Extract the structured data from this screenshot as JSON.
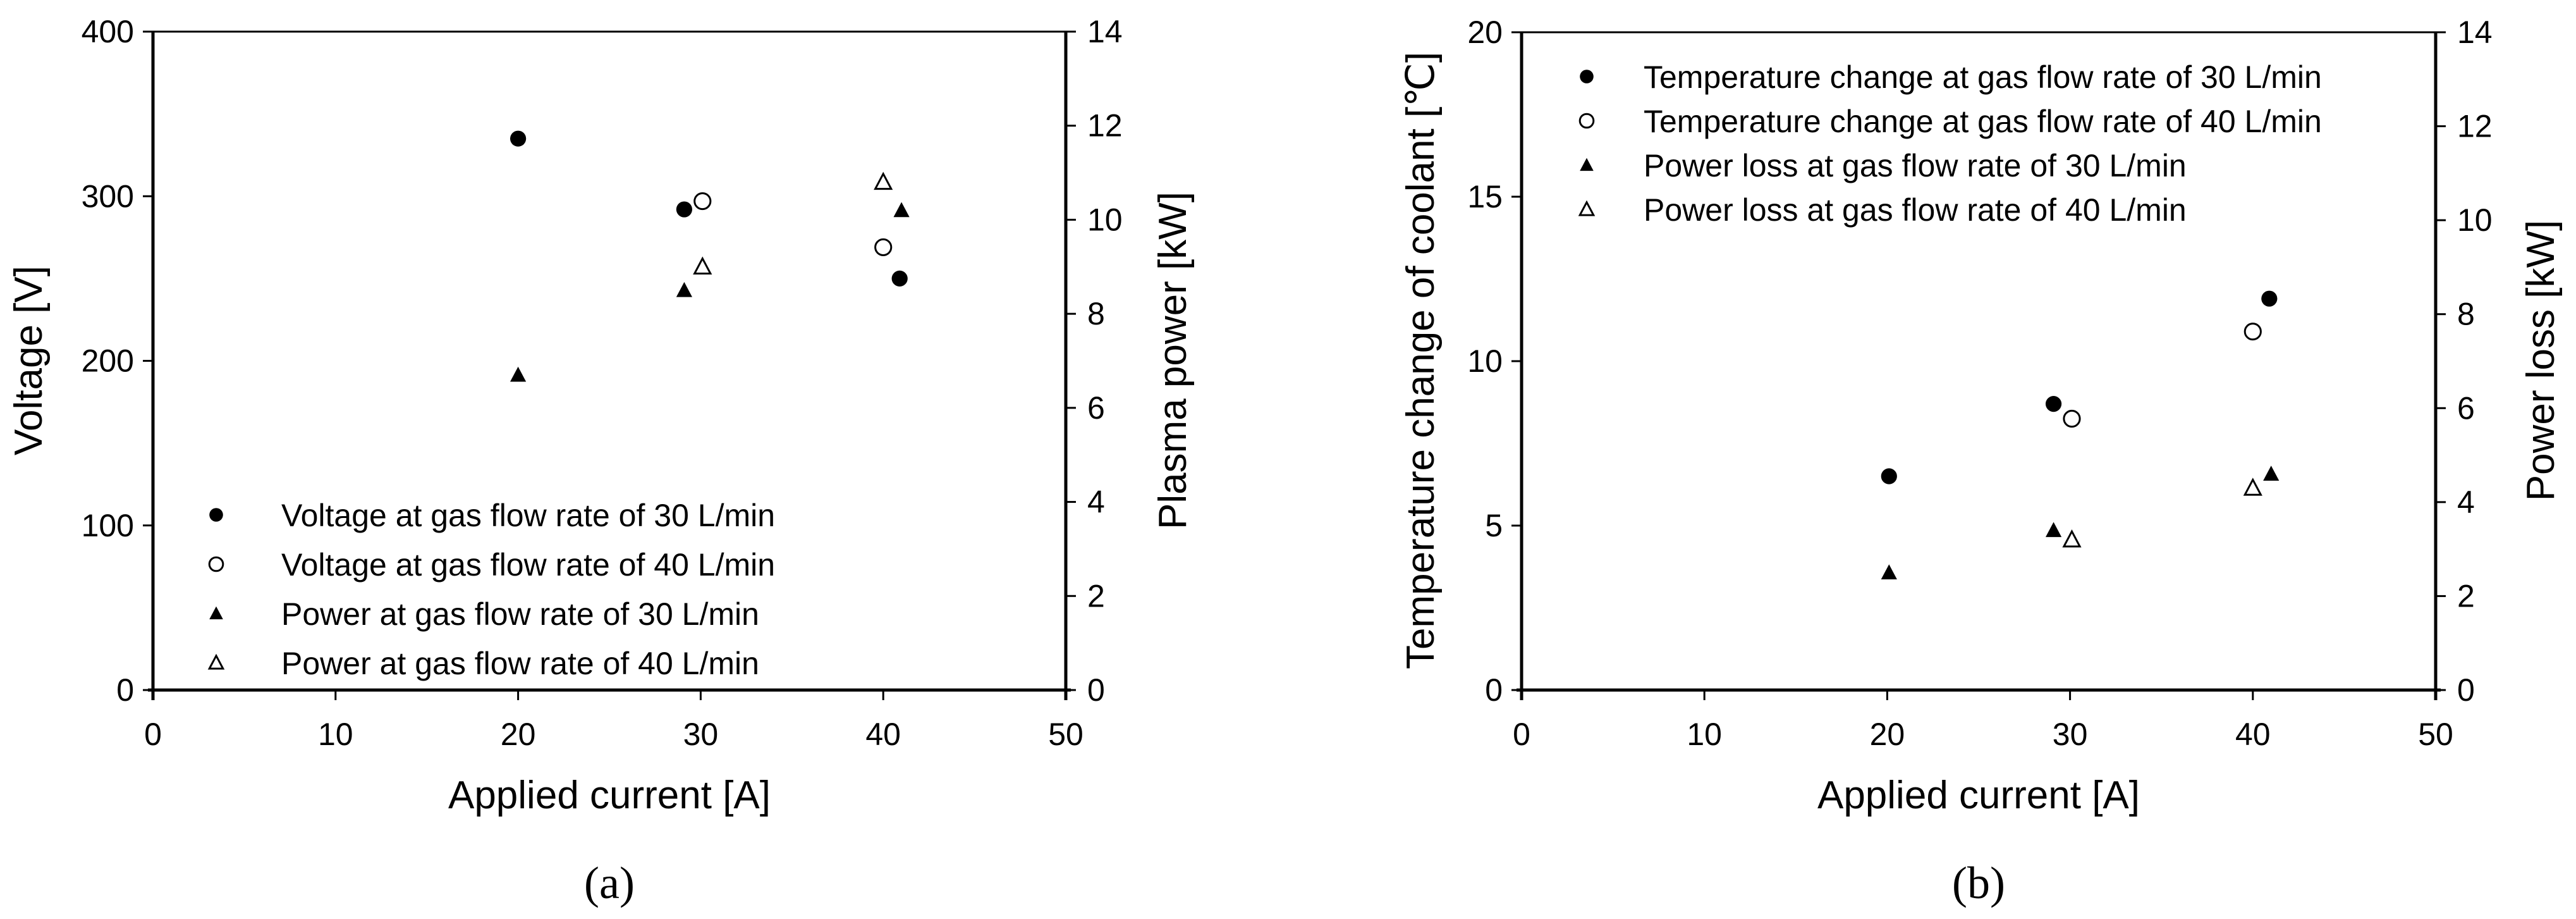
{
  "figure": {
    "panels": [
      "(a)",
      "(b)"
    ]
  },
  "chart_data": [
    {
      "type": "scatter",
      "panel_label": "(a)",
      "title": "",
      "xlabel": "Applied current [A]",
      "ylabel": "Voltage [V]",
      "y2label": "Plasma power [kW]",
      "xlim": [
        0,
        50
      ],
      "ylim": [
        0,
        400
      ],
      "y2lim": [
        0,
        14
      ],
      "xticks": [
        0,
        10,
        20,
        30,
        40,
        50
      ],
      "yticks": [
        0,
        100,
        200,
        300,
        400
      ],
      "y2ticks": [
        0,
        2,
        4,
        6,
        8,
        10,
        12,
        14
      ],
      "grid": false,
      "legend_position": "lower left",
      "series": [
        {
          "name": "Voltage at gas flow rate of 30 L/min",
          "marker": "filled-circle",
          "axis": "left",
          "x": [
            20.0,
            29.1,
            40.9
          ],
          "y": [
            335,
            292,
            250
          ]
        },
        {
          "name": "Voltage at gas flow rate of 40 L/min",
          "marker": "open-circle",
          "axis": "left",
          "x": [
            30.1,
            40.0
          ],
          "y": [
            297,
            269
          ]
        },
        {
          "name": "Power at gas flow rate of 30 L/min",
          "marker": "filled-triangle",
          "axis": "right",
          "x": [
            20.0,
            29.1,
            41.0
          ],
          "y": [
            6.7,
            8.5,
            10.2
          ]
        },
        {
          "name": "Power at gas flow rate of 40 L/min",
          "marker": "open-triangle",
          "axis": "right",
          "x": [
            30.1,
            40.0
          ],
          "y": [
            9.0,
            10.8
          ]
        }
      ]
    },
    {
      "type": "scatter",
      "panel_label": "(b)",
      "title": "",
      "xlabel": "Applied current [A]",
      "ylabel": "Temperature change of coolant [℃]",
      "y2label": "Power loss [kW]",
      "xlim": [
        0,
        50
      ],
      "ylim": [
        0,
        20
      ],
      "y2lim": [
        0,
        14
      ],
      "xticks": [
        0,
        10,
        20,
        30,
        40,
        50
      ],
      "yticks": [
        0,
        5,
        10,
        15,
        20
      ],
      "y2ticks": [
        0,
        2,
        4,
        6,
        8,
        10,
        12,
        14
      ],
      "grid": false,
      "legend_position": "upper left",
      "series": [
        {
          "name": "Temperature change at gas flow rate of 30 L/min",
          "marker": "filled-circle",
          "axis": "left",
          "x": [
            20.1,
            29.1,
            40.9
          ],
          "y": [
            6.5,
            8.7,
            11.9
          ]
        },
        {
          "name": "Temperature change at gas flow rate of 40 L/min",
          "marker": "open-circle",
          "axis": "left",
          "x": [
            30.1,
            40.0
          ],
          "y": [
            8.25,
            10.9
          ]
        },
        {
          "name": "Power loss at gas flow rate of 30 L/min",
          "marker": "filled-triangle",
          "axis": "right",
          "x": [
            20.1,
            29.1,
            41.0
          ],
          "y": [
            2.5,
            3.4,
            4.6
          ]
        },
        {
          "name": "Power loss at gas flow rate of 40 L/min",
          "marker": "open-triangle",
          "axis": "right",
          "x": [
            30.1,
            40.0
          ],
          "y": [
            3.2,
            4.3
          ]
        }
      ]
    }
  ]
}
